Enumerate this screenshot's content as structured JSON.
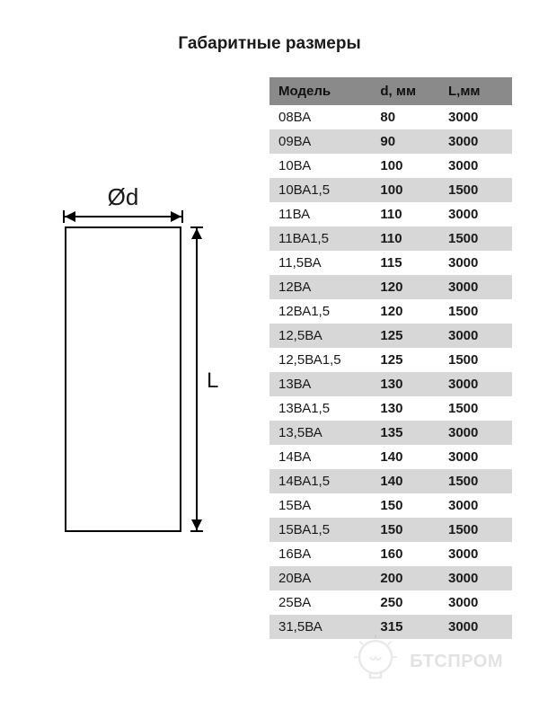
{
  "title": "Габаритные размеры",
  "diagram": {
    "d_label": "Ød",
    "l_label": "L"
  },
  "table": {
    "columns": [
      "Модель",
      "d, мм",
      "L,мм"
    ],
    "rows": [
      [
        "08ВА",
        "80",
        "3000"
      ],
      [
        "09ВА",
        "90",
        "3000"
      ],
      [
        "10ВА",
        "100",
        "3000"
      ],
      [
        "10ВА1,5",
        "100",
        "1500"
      ],
      [
        "11ВА",
        "110",
        "3000"
      ],
      [
        "11ВА1,5",
        "110",
        "1500"
      ],
      [
        "11,5ВА",
        "115",
        "3000"
      ],
      [
        "12ВА",
        "120",
        "3000"
      ],
      [
        "12ВА1,5",
        "120",
        "1500"
      ],
      [
        "12,5ВА",
        "125",
        "3000"
      ],
      [
        "12,5ВА1,5",
        "125",
        "1500"
      ],
      [
        "13ВА",
        "130",
        "3000"
      ],
      [
        "13ВА1,5",
        "130",
        "1500"
      ],
      [
        "13,5ВА",
        "135",
        "3000"
      ],
      [
        "14ВА",
        "140",
        "3000"
      ],
      [
        "14ВА1,5",
        "140",
        "1500"
      ],
      [
        "15ВА",
        "150",
        "3000"
      ],
      [
        "15ВА1,5",
        "150",
        "1500"
      ],
      [
        "16ВА",
        "160",
        "3000"
      ],
      [
        "20ВА",
        "200",
        "3000"
      ],
      [
        "25ВА",
        "250",
        "3000"
      ],
      [
        "31,5ВА",
        "315",
        "3000"
      ]
    ],
    "header_bg": "#8a8a8a",
    "row_alt_bg": "#d7d7d7",
    "font_size": 15
  },
  "watermark": {
    "text": "БТСПРОМ",
    "color": "#888888"
  }
}
